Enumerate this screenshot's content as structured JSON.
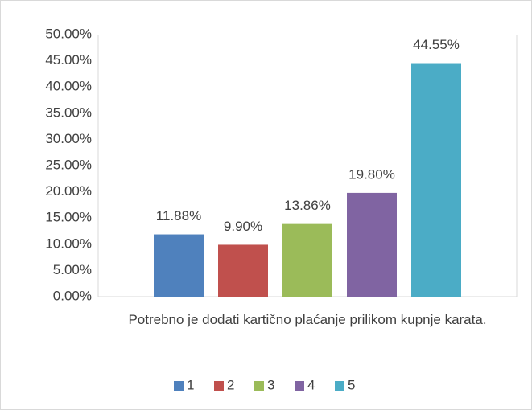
{
  "chart_data": {
    "type": "bar",
    "categories": [
      "Potrebno je dodati kartično plaćanje prilikom kupnje karata."
    ],
    "series": [
      {
        "name": "1",
        "color": "#4f81bd",
        "values": [
          11.88
        ],
        "value_labels": [
          "11.88%"
        ]
      },
      {
        "name": "2",
        "color": "#c0504d",
        "values": [
          9.9
        ],
        "value_labels": [
          "9.90%"
        ]
      },
      {
        "name": "3",
        "color": "#9bbb59",
        "values": [
          13.86
        ],
        "value_labels": [
          "13.86%"
        ]
      },
      {
        "name": "4",
        "color": "#8064a2",
        "values": [
          19.8
        ],
        "value_labels": [
          "19.80%"
        ]
      },
      {
        "name": "5",
        "color": "#4bacc6",
        "values": [
          44.55
        ],
        "value_labels": [
          "44.55%"
        ]
      }
    ],
    "ylim": [
      0,
      50
    ],
    "yticks": [
      {
        "value": 0,
        "label": "0.00%"
      },
      {
        "value": 5,
        "label": "5.00%"
      },
      {
        "value": 10,
        "label": "10.00%"
      },
      {
        "value": 15,
        "label": "15.00%"
      },
      {
        "value": 20,
        "label": "20.00%"
      },
      {
        "value": 25,
        "label": "25.00%"
      },
      {
        "value": 30,
        "label": "30.00%"
      },
      {
        "value": 35,
        "label": "35.00%"
      },
      {
        "value": 40,
        "label": "40.00%"
      },
      {
        "value": 45,
        "label": "45.00%"
      },
      {
        "value": 50,
        "label": "50.00%"
      }
    ],
    "grid": false,
    "legend": "bottom"
  }
}
